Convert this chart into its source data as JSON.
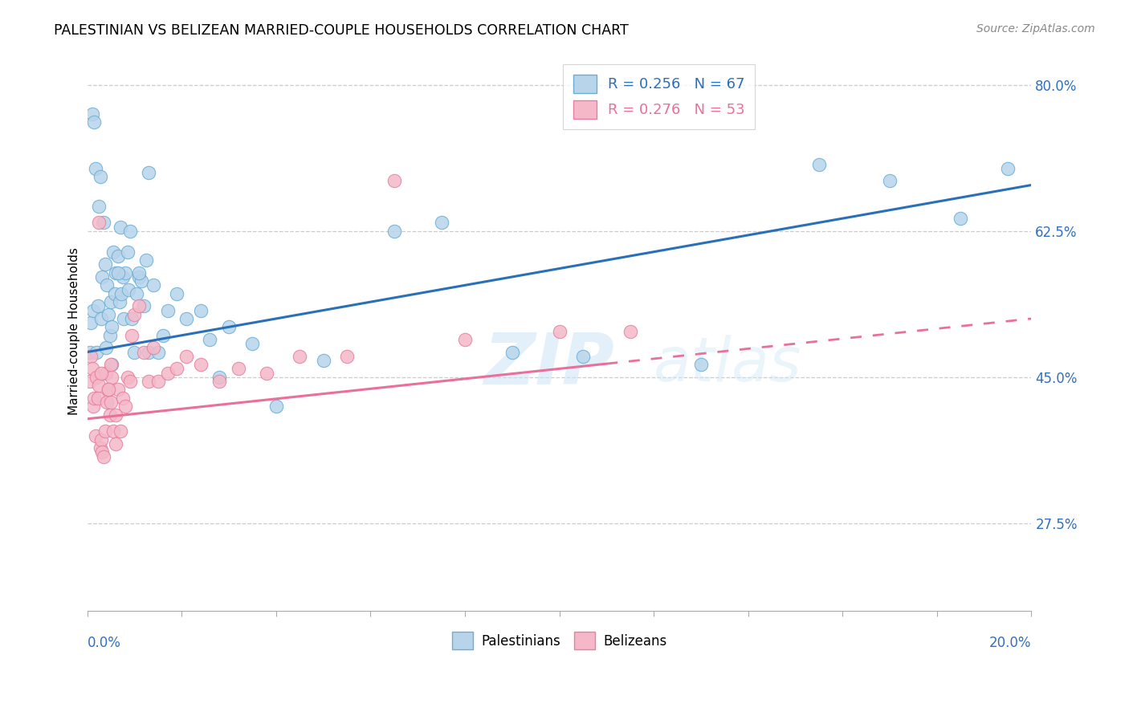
{
  "title": "PALESTINIAN VS BELIZEAN MARRIED-COUPLE HOUSEHOLDS CORRELATION CHART",
  "source": "Source: ZipAtlas.com",
  "ylabel": "Married-couple Households",
  "R_blue": 0.256,
  "N_blue": 67,
  "R_pink": 0.276,
  "N_pink": 53,
  "blue_fill": "#b8d4ea",
  "blue_edge": "#6aaed6",
  "pink_fill": "#f4b8c8",
  "pink_edge": "#e87fa0",
  "blue_line": "#2970b8",
  "pink_line": "#e8709a",
  "label_blue": "Palestinians",
  "label_pink": "Belizeans",
  "watermark_zip": "ZIP",
  "watermark_atlas": "atlas",
  "xmin": 0.0,
  "xmax": 20.0,
  "ymin": 17.0,
  "ymax": 84.0,
  "yticks": [
    27.5,
    45.0,
    62.5,
    80.0
  ],
  "blue_trend_y0": 48.0,
  "blue_trend_y1": 68.0,
  "pink_trend_y0": 40.0,
  "pink_trend_y1": 52.0,
  "pink_dash_x0": 11.0,
  "blue_x": [
    0.05,
    0.08,
    0.1,
    0.12,
    0.15,
    0.18,
    0.2,
    0.22,
    0.25,
    0.28,
    0.3,
    0.32,
    0.35,
    0.38,
    0.4,
    0.42,
    0.45,
    0.48,
    0.5,
    0.52,
    0.55,
    0.58,
    0.6,
    0.65,
    0.68,
    0.7,
    0.72,
    0.75,
    0.78,
    0.8,
    0.85,
    0.88,
    0.9,
    0.95,
    1.0,
    1.05,
    1.1,
    1.15,
    1.2,
    1.25,
    1.3,
    1.4,
    1.5,
    1.6,
    1.7,
    1.9,
    2.1,
    2.4,
    2.6,
    2.8,
    3.0,
    3.5,
    4.0,
    5.0,
    6.5,
    7.5,
    9.0,
    10.5,
    13.0,
    15.5,
    17.0,
    18.5,
    19.5,
    1.3,
    0.65,
    0.52,
    1.1
  ],
  "blue_y": [
    48.0,
    51.5,
    76.5,
    53.0,
    75.5,
    70.0,
    48.0,
    53.5,
    65.5,
    69.0,
    52.0,
    57.0,
    63.5,
    58.5,
    48.5,
    56.0,
    52.5,
    50.0,
    54.0,
    51.0,
    60.0,
    55.0,
    57.5,
    59.5,
    54.0,
    63.0,
    55.0,
    57.0,
    52.0,
    57.5,
    60.0,
    55.5,
    62.5,
    52.0,
    48.0,
    55.0,
    57.0,
    56.5,
    53.5,
    59.0,
    48.0,
    56.0,
    48.0,
    50.0,
    53.0,
    55.0,
    52.0,
    53.0,
    49.5,
    45.0,
    51.0,
    49.0,
    41.5,
    47.0,
    62.5,
    63.5,
    48.0,
    47.5,
    46.5,
    70.5,
    68.5,
    64.0,
    70.0,
    69.5,
    57.5,
    46.5,
    57.5
  ],
  "pink_x": [
    0.05,
    0.08,
    0.1,
    0.12,
    0.15,
    0.18,
    0.2,
    0.22,
    0.25,
    0.28,
    0.3,
    0.32,
    0.35,
    0.38,
    0.4,
    0.42,
    0.45,
    0.48,
    0.5,
    0.52,
    0.55,
    0.6,
    0.65,
    0.7,
    0.75,
    0.8,
    0.85,
    0.9,
    0.95,
    1.0,
    1.1,
    1.2,
    1.3,
    1.4,
    1.5,
    1.7,
    1.9,
    2.1,
    2.4,
    2.8,
    3.2,
    3.8,
    4.5,
    5.5,
    6.5,
    8.0,
    10.0,
    11.5,
    0.25,
    0.3,
    0.45,
    0.5,
    0.6
  ],
  "pink_y": [
    44.5,
    47.5,
    46.0,
    41.5,
    42.5,
    38.0,
    45.0,
    42.5,
    44.0,
    36.5,
    37.5,
    36.0,
    35.5,
    38.5,
    45.5,
    42.0,
    43.5,
    40.5,
    42.0,
    45.0,
    38.5,
    37.0,
    43.5,
    38.5,
    42.5,
    41.5,
    45.0,
    44.5,
    50.0,
    52.5,
    53.5,
    48.0,
    44.5,
    48.5,
    44.5,
    45.5,
    46.0,
    47.5,
    46.5,
    44.5,
    46.0,
    45.5,
    47.5,
    47.5,
    68.5,
    49.5,
    50.5,
    50.5,
    63.5,
    45.5,
    43.5,
    46.5,
    40.5
  ]
}
